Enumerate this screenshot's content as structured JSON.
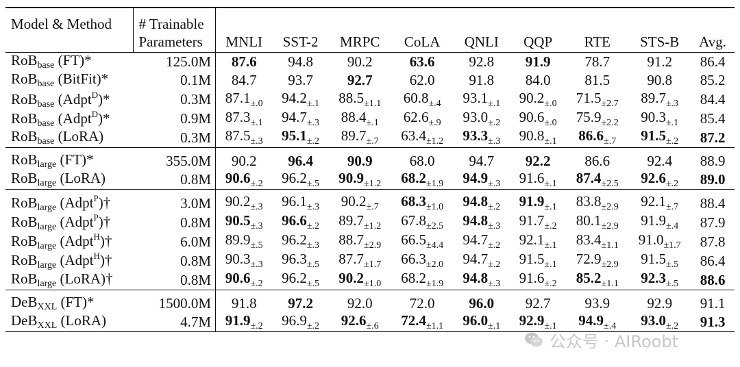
{
  "header": {
    "model_method": "Model & Method",
    "trainable_line1": "# Trainable",
    "trainable_line2": "Parameters",
    "columns": [
      "MNLI",
      "SST-2",
      "MRPC",
      "CoLA",
      "QNLI",
      "QQP",
      "RTE",
      "STS-B",
      "Avg."
    ]
  },
  "groups": [
    [
      {
        "base": "RoB",
        "sub": "base",
        "method": "(FT)*",
        "params": "125.0M",
        "cells": [
          {
            "v": "87.6",
            "b": true
          },
          {
            "v": "94.8"
          },
          {
            "v": "90.2"
          },
          {
            "v": "63.6",
            "b": true
          },
          {
            "v": "92.8"
          },
          {
            "v": "91.9",
            "b": true
          },
          {
            "v": "78.7"
          },
          {
            "v": "91.2"
          },
          {
            "v": "86.4"
          }
        ]
      },
      {
        "base": "RoB",
        "sub": "base",
        "method": "(BitFit)*",
        "params": "0.1M",
        "cells": [
          {
            "v": "84.7"
          },
          {
            "v": "93.7"
          },
          {
            "v": "92.7",
            "b": true
          },
          {
            "v": "62.0"
          },
          {
            "v": "91.8"
          },
          {
            "v": "84.0"
          },
          {
            "v": "81.5"
          },
          {
            "v": "90.8"
          },
          {
            "v": "85.2"
          }
        ]
      },
      {
        "base": "RoB",
        "sub": "base",
        "method": "(Adpt",
        "sup": "D",
        "tail": ")*",
        "params": "0.3M",
        "cells": [
          {
            "v": "87.1",
            "pm": "±.0"
          },
          {
            "v": "94.2",
            "pm": "±.1"
          },
          {
            "v": "88.5",
            "pm": "±1.1"
          },
          {
            "v": "60.8",
            "pm": "±.4"
          },
          {
            "v": "93.1",
            "pm": "±.1"
          },
          {
            "v": "90.2",
            "pm": "±.0"
          },
          {
            "v": "71.5",
            "pm": "±2.7"
          },
          {
            "v": "89.7",
            "pm": "±.3"
          },
          {
            "v": "84.4"
          }
        ]
      },
      {
        "base": "RoB",
        "sub": "base",
        "method": "(Adpt",
        "sup": "D",
        "tail": ")*",
        "params": "0.9M",
        "cells": [
          {
            "v": "87.3",
            "pm": "±.1"
          },
          {
            "v": "94.7",
            "pm": "±.3"
          },
          {
            "v": "88.4",
            "pm": "±.1"
          },
          {
            "v": "62.6",
            "pm": "±.9"
          },
          {
            "v": "93.0",
            "pm": "±.2"
          },
          {
            "v": "90.6",
            "pm": "±.0"
          },
          {
            "v": "75.9",
            "pm": "±2.2"
          },
          {
            "v": "90.3",
            "pm": "±.1"
          },
          {
            "v": "85.4"
          }
        ]
      },
      {
        "base": "RoB",
        "sub": "base",
        "method": "(LoRA)",
        "params": "0.3M",
        "cells": [
          {
            "v": "87.5",
            "pm": "±.3"
          },
          {
            "v": "95.1",
            "pm": "±.2",
            "b": true
          },
          {
            "v": "89.7",
            "pm": "±.7"
          },
          {
            "v": "63.4",
            "pm": "±1.2"
          },
          {
            "v": "93.3",
            "pm": "±.3",
            "b": true
          },
          {
            "v": "90.8",
            "pm": "±.1"
          },
          {
            "v": "86.6",
            "pm": "±.7",
            "b": true
          },
          {
            "v": "91.5",
            "pm": "±.2",
            "b": true
          },
          {
            "v": "87.2",
            "b": true
          }
        ]
      }
    ],
    [
      {
        "base": "RoB",
        "sub": "large",
        "method": "(FT)*",
        "params": "355.0M",
        "cells": [
          {
            "v": "90.2"
          },
          {
            "v": "96.4",
            "b": true
          },
          {
            "v": "90.9",
            "b": true
          },
          {
            "v": "68.0"
          },
          {
            "v": "94.7"
          },
          {
            "v": "92.2",
            "b": true
          },
          {
            "v": "86.6"
          },
          {
            "v": "92.4"
          },
          {
            "v": "88.9"
          }
        ]
      },
      {
        "base": "RoB",
        "sub": "large",
        "method": "(LoRA)",
        "params": "0.8M",
        "cells": [
          {
            "v": "90.6",
            "pm": "±.2",
            "b": true
          },
          {
            "v": "96.2",
            "pm": "±.5"
          },
          {
            "v": "90.9",
            "pm": "±1.2",
            "b": true
          },
          {
            "v": "68.2",
            "pm": "±1.9",
            "b": true
          },
          {
            "v": "94.9",
            "pm": "±.3",
            "b": true
          },
          {
            "v": "91.6",
            "pm": "±.1"
          },
          {
            "v": "87.4",
            "pm": "±2.5",
            "b": true
          },
          {
            "v": "92.6",
            "pm": "±.2",
            "b": true
          },
          {
            "v": "89.0",
            "b": true
          }
        ]
      }
    ],
    [
      {
        "base": "RoB",
        "sub": "large",
        "method": "(Adpt",
        "sup": "P",
        "tail": ")†",
        "params": "3.0M",
        "cells": [
          {
            "v": "90.2",
            "pm": "±.3"
          },
          {
            "v": "96.1",
            "pm": "±.3"
          },
          {
            "v": "90.2",
            "pm": "±.7"
          },
          {
            "v": "68.3",
            "pm": "±1.0",
            "b": true
          },
          {
            "v": "94.8",
            "pm": "±.2",
            "b": true
          },
          {
            "v": "91.9",
            "pm": "±.1",
            "b": true
          },
          {
            "v": "83.8",
            "pm": "±2.9"
          },
          {
            "v": "92.1",
            "pm": "±.7"
          },
          {
            "v": "88.4"
          }
        ]
      },
      {
        "base": "RoB",
        "sub": "large",
        "method": "(Adpt",
        "sup": "P",
        "tail": ")†",
        "params": "0.8M",
        "cells": [
          {
            "v": "90.5",
            "pm": "±.3",
            "b": true
          },
          {
            "v": "96.6",
            "pm": "±.2",
            "b": true
          },
          {
            "v": "89.7",
            "pm": "±1.2"
          },
          {
            "v": "67.8",
            "pm": "±2.5"
          },
          {
            "v": "94.8",
            "pm": "±.3",
            "b": true
          },
          {
            "v": "91.7",
            "pm": "±.2"
          },
          {
            "v": "80.1",
            "pm": "±2.9"
          },
          {
            "v": "91.9",
            "pm": "±.4"
          },
          {
            "v": "87.9"
          }
        ]
      },
      {
        "base": "RoB",
        "sub": "large",
        "method": "(Adpt",
        "sup": "H",
        "tail": ")†",
        "params": "6.0M",
        "cells": [
          {
            "v": "89.9",
            "pm": "±.5"
          },
          {
            "v": "96.2",
            "pm": "±.3"
          },
          {
            "v": "88.7",
            "pm": "±2.9"
          },
          {
            "v": "66.5",
            "pm": "±4.4"
          },
          {
            "v": "94.7",
            "pm": "±.2"
          },
          {
            "v": "92.1",
            "pm": "±.1"
          },
          {
            "v": "83.4",
            "pm": "±1.1"
          },
          {
            "v": "91.0",
            "pm": "±1.7"
          },
          {
            "v": "87.8"
          }
        ]
      },
      {
        "base": "RoB",
        "sub": "large",
        "method": "(Adpt",
        "sup": "H",
        "tail": ")†",
        "params": "0.8M",
        "cells": [
          {
            "v": "90.3",
            "pm": "±.3"
          },
          {
            "v": "96.3",
            "pm": "±.5"
          },
          {
            "v": "87.7",
            "pm": "±1.7"
          },
          {
            "v": "66.3",
            "pm": "±2.0"
          },
          {
            "v": "94.7",
            "pm": "±.2"
          },
          {
            "v": "91.5",
            "pm": "±.1"
          },
          {
            "v": "72.9",
            "pm": "±2.9"
          },
          {
            "v": "91.5",
            "pm": "±.5"
          },
          {
            "v": "86.4"
          }
        ]
      },
      {
        "base": "RoB",
        "sub": "large",
        "method": "(LoRA)†",
        "params": "0.8M",
        "cells": [
          {
            "v": "90.6",
            "pm": "±.2",
            "b": true
          },
          {
            "v": "96.2",
            "pm": "±.5"
          },
          {
            "v": "90.2",
            "pm": "±1.0",
            "b": true
          },
          {
            "v": "68.2",
            "pm": "±1.9"
          },
          {
            "v": "94.8",
            "pm": "±.3",
            "b": true
          },
          {
            "v": "91.6",
            "pm": "±.2"
          },
          {
            "v": "85.2",
            "pm": "±1.1",
            "b": true
          },
          {
            "v": "92.3",
            "pm": "±.5",
            "b": true
          },
          {
            "v": "88.6",
            "b": true
          }
        ]
      }
    ],
    [
      {
        "base": "DeB",
        "sub": "XXL",
        "method": "(FT)*",
        "params": "1500.0M",
        "cells": [
          {
            "v": "91.8"
          },
          {
            "v": "97.2",
            "b": true
          },
          {
            "v": "92.0"
          },
          {
            "v": "72.0"
          },
          {
            "v": "96.0",
            "b": true
          },
          {
            "v": "92.7"
          },
          {
            "v": "93.9"
          },
          {
            "v": "92.9"
          },
          {
            "v": "91.1"
          }
        ]
      },
      {
        "base": "DeB",
        "sub": "XXL",
        "method": "(LoRA)",
        "params": "4.7M",
        "cells": [
          {
            "v": "91.9",
            "pm": "±.2",
            "b": true
          },
          {
            "v": "96.9",
            "pm": "±.2"
          },
          {
            "v": "92.6",
            "pm": "±.6",
            "b": true
          },
          {
            "v": "72.4",
            "pm": "±1.1",
            "b": true
          },
          {
            "v": "96.0",
            "pm": "±.1",
            "b": true
          },
          {
            "v": "92.9",
            "pm": "±.1",
            "b": true
          },
          {
            "v": "94.9",
            "pm": "±.4",
            "b": true
          },
          {
            "v": "93.0",
            "pm": "±.2",
            "b": true
          },
          {
            "v": "91.3",
            "b": true
          }
        ]
      }
    ]
  ],
  "watermark": {
    "icon": "wechat-icon",
    "text": "公众号 · AIRoobt"
  }
}
